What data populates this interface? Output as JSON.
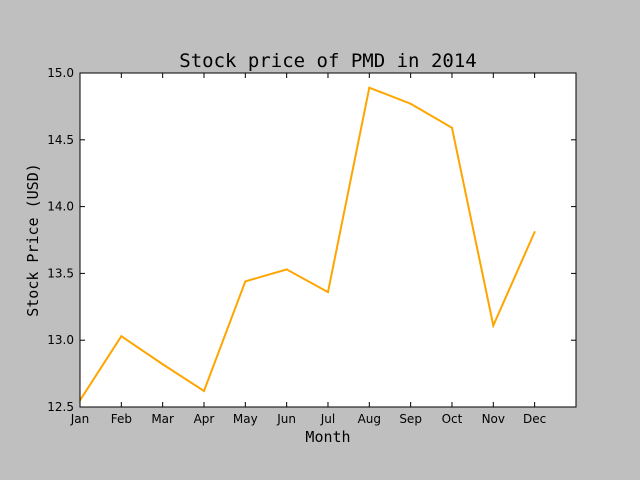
{
  "chart_data": {
    "type": "line",
    "title": "Stock price of PMD in 2014",
    "xlabel": "Month",
    "ylabel": "Stock Price (USD)",
    "categories": [
      "Jan",
      "Feb",
      "Mar",
      "Apr",
      "May",
      "Jun",
      "Jul",
      "Aug",
      "Sep",
      "Oct",
      "Nov",
      "Dec"
    ],
    "series": [
      {
        "color": "#ffa500",
        "values": [
          12.55,
          13.03,
          12.82,
          12.62,
          13.44,
          13.53,
          13.36,
          14.89,
          14.77,
          14.59,
          13.11,
          13.81
        ]
      }
    ],
    "ylim": [
      12.5,
      15.0
    ],
    "yticks": [
      "12.5",
      "13.0",
      "13.5",
      "14.0",
      "14.5",
      "15.0"
    ],
    "grid": false,
    "legend": "none"
  }
}
